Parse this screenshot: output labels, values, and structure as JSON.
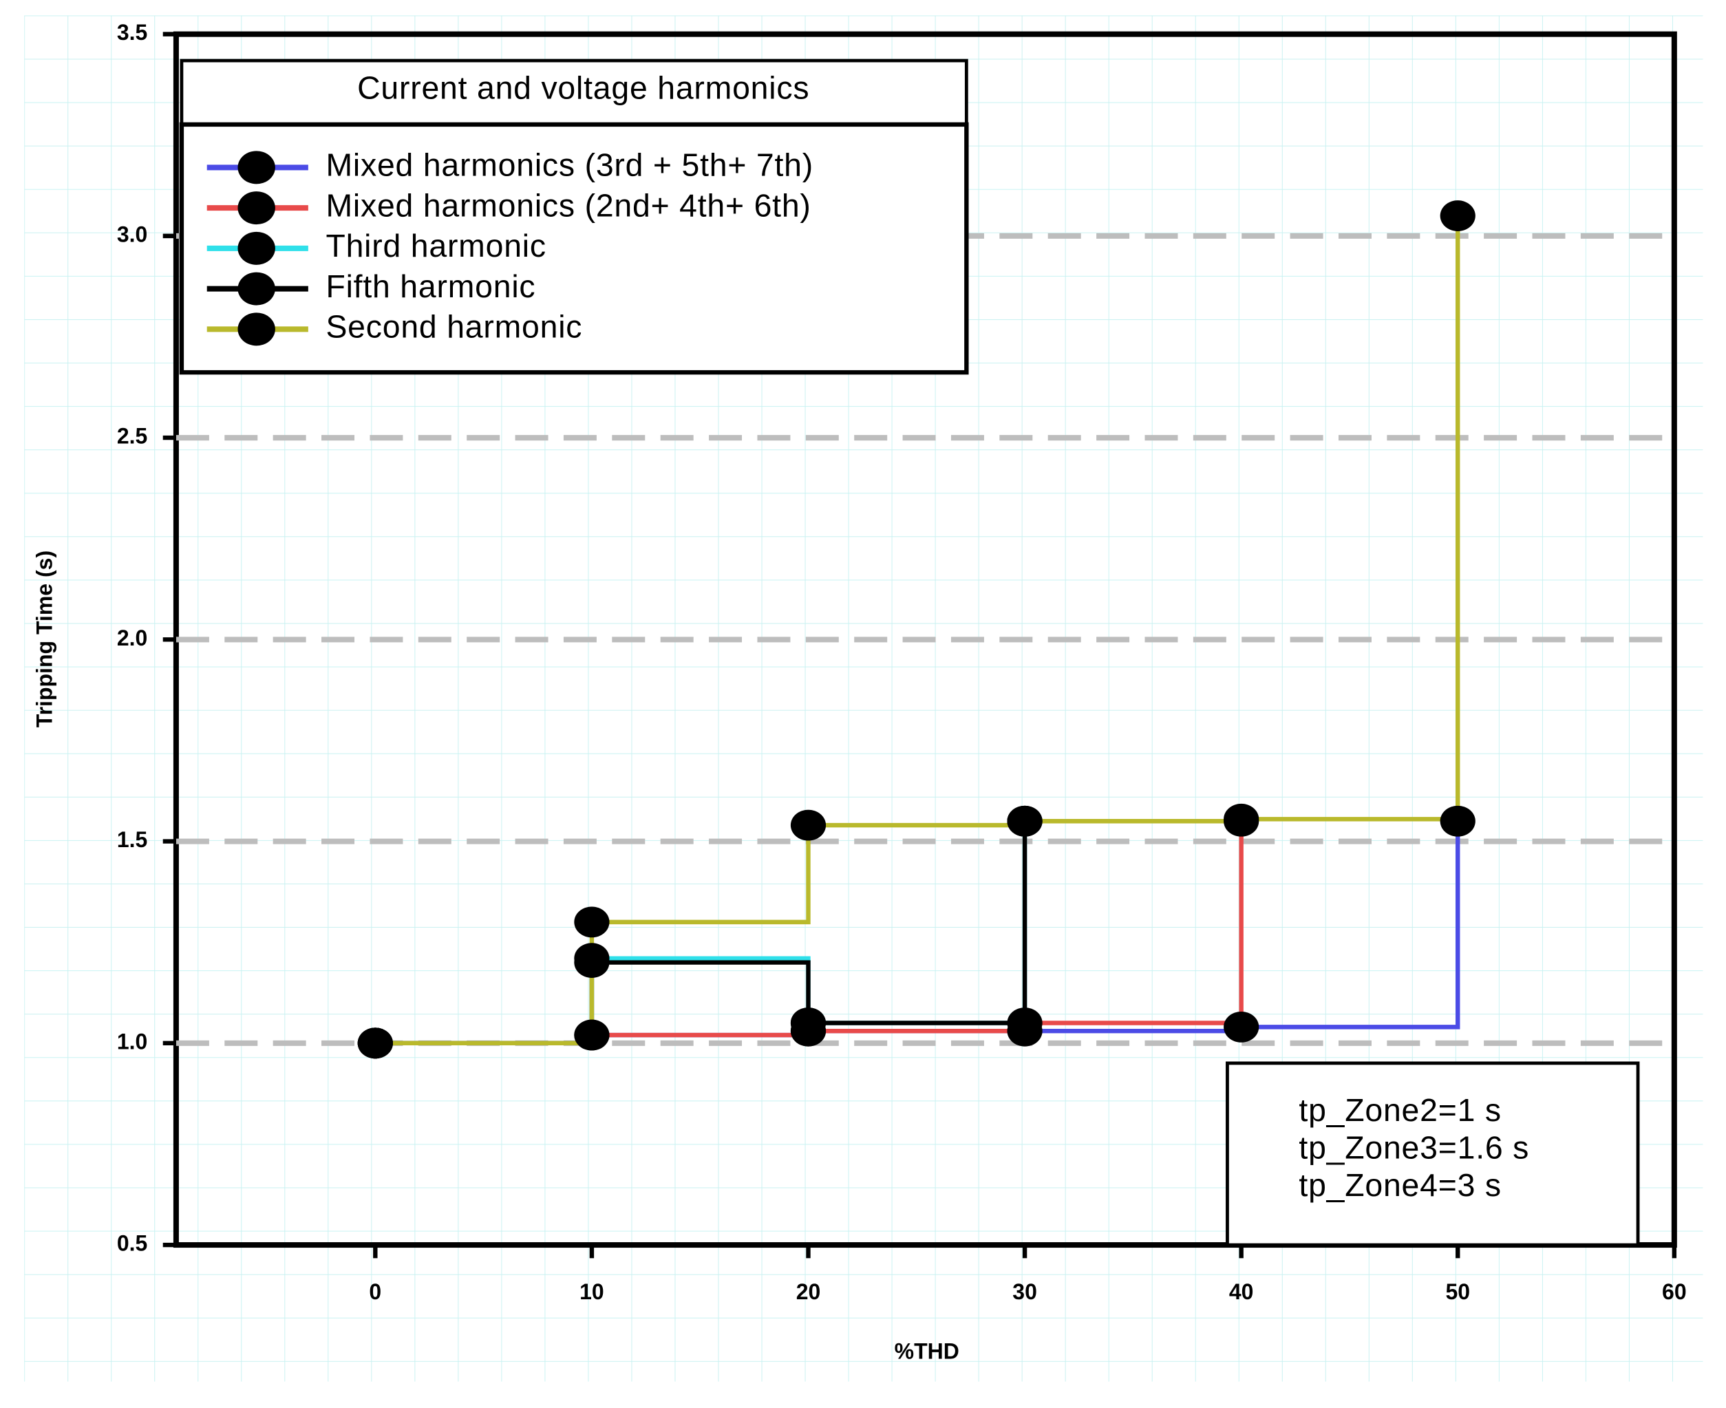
{
  "chart_data": {
    "type": "step",
    "x_label": "%THD",
    "y_label": "Tripping Time (s)",
    "x": [
      0,
      10,
      20,
      30,
      40,
      50
    ],
    "series": [
      {
        "name": "Mixed harmonics (3rd + 5th+ 7th)",
        "color": "#4b4be6",
        "values": [
          1.0,
          1.02,
          1.03,
          1.03,
          1.04,
          1.55
        ]
      },
      {
        "name": "Mixed harmonics (2nd+ 4th+ 6th)",
        "color": "#e84a4a",
        "values": [
          1.0,
          1.02,
          1.03,
          1.05,
          1.55,
          null
        ]
      },
      {
        "name": "Third harmonic",
        "color": "#2fe0ea",
        "values": [
          1.0,
          1.21,
          1.05,
          1.55,
          null,
          null
        ]
      },
      {
        "name": "Fifth  harmonic",
        "color": "#000000",
        "values": [
          1.0,
          1.2,
          1.05,
          1.55,
          null,
          null
        ]
      },
      {
        "name": "Second harmonic",
        "color": "#b9b92c",
        "values": [
          1.0,
          1.3,
          1.54,
          1.55,
          1.555,
          3.05
        ]
      }
    ],
    "legend_title": "Current and voltage harmonics",
    "legend_position": "upper left",
    "annotation": [
      "tp_Zone2=1 s",
      "tp_Zone3=1.6 s",
      "tp_Zone4=3 s"
    ],
    "xlim": [
      -9.2,
      60
    ],
    "ylim": [
      0.5,
      3.5
    ],
    "xticks": [
      0,
      10,
      20,
      30,
      40,
      50,
      60
    ],
    "yticks": [
      0.5,
      {
        "value": 1.0,
        "label": "1.0"
      },
      1.5,
      {
        "value": 2.0,
        "label": "2.0"
      },
      2.5,
      {
        "value": 3.0,
        "label": "3.0"
      },
      3.5
    ],
    "grid": true
  }
}
